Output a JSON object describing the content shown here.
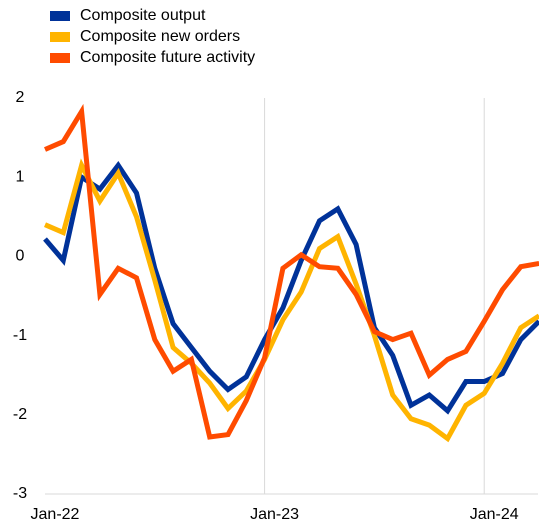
{
  "chart_data": {
    "type": "line",
    "categories": [
      "Jan-22",
      null,
      null,
      null,
      null,
      null,
      null,
      null,
      null,
      null,
      null,
      null,
      "Jan-23",
      null,
      null,
      null,
      null,
      null,
      null,
      null,
      null,
      null,
      null,
      null,
      "Jan-24",
      null,
      null,
      null
    ],
    "series": [
      {
        "name": "Composite output",
        "color": "#003299",
        "values": [
          0.22,
          -0.05,
          1.0,
          0.85,
          1.15,
          0.8,
          -0.15,
          -0.85,
          -1.15,
          -1.45,
          -1.68,
          -1.52,
          -1.05,
          -0.65,
          -0.05,
          0.45,
          0.6,
          0.15,
          -0.9,
          -1.25,
          -1.88,
          -1.75,
          -1.95,
          -1.58,
          -1.58,
          -1.48,
          -1.05,
          -0.82
        ]
      },
      {
        "name": "Composite new orders",
        "color": "#FFB400",
        "values": [
          0.4,
          0.3,
          1.15,
          0.7,
          1.05,
          0.5,
          -0.3,
          -1.15,
          -1.35,
          -1.6,
          -1.92,
          -1.7,
          -1.3,
          -0.8,
          -0.45,
          0.1,
          0.25,
          -0.35,
          -1.0,
          -1.75,
          -2.05,
          -2.13,
          -2.3,
          -1.88,
          -1.73,
          -1.35,
          -0.9,
          -0.75
        ]
      },
      {
        "name": "Composite future activity",
        "color": "#FF4B00",
        "values": [
          1.35,
          1.45,
          1.83,
          -0.48,
          -0.15,
          -0.27,
          -1.05,
          -1.45,
          -1.3,
          -2.28,
          -2.25,
          -1.82,
          -1.28,
          -0.15,
          0.02,
          -0.13,
          -0.15,
          -0.48,
          -0.95,
          -1.05,
          -0.97,
          -1.5,
          -1.3,
          -1.2,
          -0.82,
          -0.42,
          -0.13,
          -0.09
        ]
      }
    ],
    "ylim": [
      -3,
      2
    ],
    "yticks": [
      -3,
      -2,
      -1,
      0,
      1,
      2
    ],
    "grid": true,
    "legend": "top-left"
  }
}
